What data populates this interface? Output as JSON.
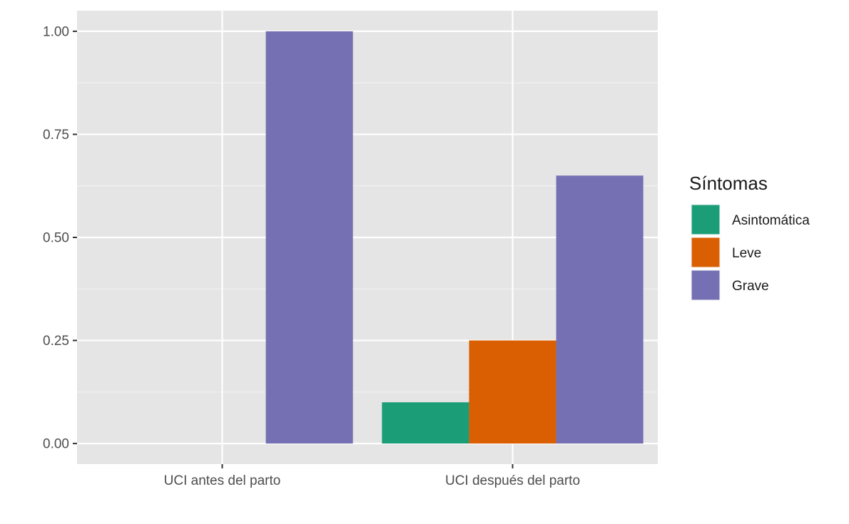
{
  "chart_data": {
    "type": "bar",
    "categories": [
      "UCI antes del parto",
      "UCI después del parto"
    ],
    "series": [
      {
        "name": "Asintomática",
        "color": "#1b9e77",
        "values": [
          0,
          0.1
        ]
      },
      {
        "name": "Leve",
        "color": "#d95f02",
        "values": [
          0,
          0.25
        ]
      },
      {
        "name": "Grave",
        "color": "#7570b3",
        "values": [
          1.0,
          0.65
        ]
      }
    ],
    "ylim": [
      -0.05,
      1.05
    ],
    "yticks": [
      "0.00",
      "0.25",
      "0.50",
      "0.75",
      "1.00"
    ],
    "xlabel": "",
    "ylabel": "",
    "grid": true,
    "legend": {
      "title": "Síntomas",
      "position": "right"
    },
    "panel_background": "#e5e5e5"
  }
}
